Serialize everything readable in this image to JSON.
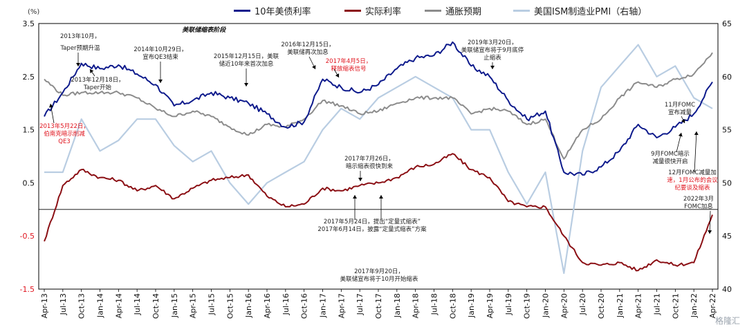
{
  "unit_label": "(%)",
  "watermark": "格隆汇",
  "legend": [
    {
      "label": "10年美债利率",
      "color": "#0d1a8c"
    },
    {
      "label": "实际利率",
      "color": "#8b0f14"
    },
    {
      "label": "通胀预期",
      "color": "#8c8c8c"
    },
    {
      "label": "美国ISM制造业PMI（右轴）",
      "color": "#b9cde2"
    }
  ],
  "shaded": {
    "label": "美联储缩表阶段",
    "from": "Oct-17",
    "to": "Aug-19"
  },
  "chart_data": {
    "type": "line",
    "title": "",
    "xlabel": "",
    "ylabel": "",
    "ylim": [
      -1.5,
      3.5
    ],
    "y2lim": [
      40,
      65
    ],
    "yticks": [
      "3.5",
      "2.5",
      "1.5",
      "0.5",
      "-0.5",
      "-1.5"
    ],
    "y2ticks": [
      "65",
      "60",
      "55",
      "50",
      "45",
      "40"
    ],
    "xticks": [
      "Apr-13",
      "Jul-13",
      "Oct-13",
      "Jan-14",
      "Apr-14",
      "Jul-14",
      "Oct-14",
      "Jan-15",
      "Apr-15",
      "Jul-15",
      "Oct-15",
      "Jan-16",
      "Apr-16",
      "Jul-16",
      "Oct-16",
      "Jan-17",
      "Apr-17",
      "Jul-17",
      "Oct-17",
      "Jan-18",
      "Apr-18",
      "Jul-18",
      "Oct-18",
      "Jan-19",
      "Apr-19",
      "Jul-19",
      "Oct-19",
      "Jan-20",
      "Apr-20",
      "Jul-20",
      "Oct-20",
      "Jan-21",
      "Apr-21",
      "Jul-21",
      "Oct-21",
      "Jan-22",
      "Apr-22"
    ],
    "series": [
      {
        "name": "10年美债利率",
        "color": "#0d1a8c",
        "axis": "left",
        "x": [
          0,
          1,
          2,
          3,
          4,
          5,
          6,
          7,
          8,
          9,
          10,
          11,
          12,
          13,
          14,
          15,
          16,
          17,
          18,
          19,
          20,
          21,
          22,
          23,
          24,
          25,
          26,
          27,
          28,
          29,
          30,
          31,
          32,
          33,
          34,
          35,
          36
        ],
        "values": [
          1.75,
          2.2,
          2.75,
          2.65,
          2.72,
          2.55,
          2.35,
          1.95,
          2.05,
          2.2,
          2.1,
          2.0,
          1.8,
          1.55,
          1.65,
          2.45,
          2.3,
          2.2,
          2.35,
          2.65,
          2.85,
          2.9,
          3.15,
          2.7,
          2.5,
          2.05,
          1.7,
          1.85,
          0.7,
          0.65,
          0.8,
          1.1,
          1.6,
          1.35,
          1.55,
          1.8,
          2.4
        ]
      },
      {
        "name": "实际利率",
        "color": "#8b0f14",
        "axis": "left",
        "x": [
          0,
          1,
          2,
          3,
          4,
          5,
          6,
          7,
          8,
          9,
          10,
          11,
          12,
          13,
          14,
          15,
          16,
          17,
          18,
          19,
          20,
          21,
          22,
          23,
          24,
          25,
          26,
          27,
          28,
          29,
          30,
          31,
          32,
          33,
          34,
          35,
          36
        ],
        "values": [
          -0.6,
          0.45,
          0.75,
          0.6,
          0.55,
          0.35,
          0.45,
          0.2,
          0.4,
          0.55,
          0.6,
          0.65,
          0.25,
          0.05,
          0.1,
          0.4,
          0.35,
          0.45,
          0.5,
          0.6,
          0.8,
          0.85,
          1.05,
          0.75,
          0.6,
          0.15,
          0.05,
          0.05,
          -0.5,
          -1.0,
          -1.05,
          -1.0,
          -1.15,
          -0.95,
          -1.05,
          -1.0,
          -0.1
        ]
      },
      {
        "name": "通胀预期",
        "color": "#8c8c8c",
        "axis": "left",
        "x": [
          0,
          1,
          2,
          3,
          4,
          5,
          6,
          7,
          8,
          9,
          10,
          11,
          12,
          13,
          14,
          15,
          16,
          17,
          18,
          19,
          20,
          21,
          22,
          23,
          24,
          25,
          26,
          27,
          28,
          29,
          30,
          31,
          32,
          33,
          34,
          35,
          36
        ],
        "values": [
          2.45,
          2.15,
          2.2,
          2.2,
          2.2,
          2.1,
          1.9,
          1.75,
          1.85,
          1.75,
          1.55,
          1.4,
          1.6,
          1.55,
          1.7,
          2.05,
          1.95,
          1.8,
          1.85,
          2.0,
          2.1,
          2.1,
          2.1,
          1.8,
          1.9,
          1.85,
          1.6,
          1.7,
          0.95,
          1.5,
          1.7,
          2.1,
          2.4,
          2.3,
          2.45,
          2.55,
          2.95
        ]
      },
      {
        "name": "美国ISM制造业PMI（右轴）",
        "color": "#b9cde2",
        "axis": "right",
        "x": [
          0,
          1,
          2,
          3,
          4,
          5,
          6,
          7,
          8,
          9,
          10,
          11,
          12,
          13,
          14,
          15,
          16,
          17,
          18,
          19,
          20,
          21,
          22,
          23,
          24,
          25,
          26,
          27,
          28,
          29,
          30,
          31,
          32,
          33,
          34,
          35,
          36
        ],
        "values": [
          51,
          51,
          56,
          53,
          54,
          56,
          56,
          53.5,
          52,
          53,
          50,
          48,
          50,
          51,
          52,
          55,
          57,
          56,
          58,
          59,
          60,
          59,
          58,
          55,
          55,
          51,
          48,
          51,
          41.5,
          53,
          59,
          61,
          63,
          60,
          61,
          58,
          57
        ]
      }
    ]
  },
  "annotations": [
    {
      "text": "2013年10月，",
      "color": "#222222"
    },
    {
      "text": "Taper预期升温",
      "color": "#222222"
    },
    {
      "text": "2013年12月18日，",
      "color": "#222222"
    },
    {
      "text": "Taper开始",
      "color": "#222222"
    },
    {
      "text": "2014年10月29日，",
      "color": "#222222"
    },
    {
      "text": "宣布QE3结束",
      "color": "#222222"
    },
    {
      "text": "2015年12月15日，美联",
      "color": "#222222"
    },
    {
      "text": "储近10年来首次加息",
      "color": "#222222"
    },
    {
      "text": "2016年12月15日，",
      "color": "#222222"
    },
    {
      "text": "美联储再次加息",
      "color": "#222222"
    },
    {
      "text": "2017年4月5日，",
      "color": "#e0141e"
    },
    {
      "text": "释放缩表信号",
      "color": "#e0141e"
    },
    {
      "text": "2019年3月20日，",
      "color": "#222222"
    },
    {
      "text": "美联储宣布将于9月底停",
      "color": "#222222"
    },
    {
      "text": "止缩表",
      "color": "#222222"
    },
    {
      "text": "2013年5月22日，",
      "color": "#e0141e"
    },
    {
      "text": "伯南克暗示削减",
      "color": "#e0141e"
    },
    {
      "text": "QE3",
      "color": "#e0141e"
    },
    {
      "text": "2017年7月26日，",
      "color": "#222222"
    },
    {
      "text": "暗示缩表很快到来",
      "color": "#222222"
    },
    {
      "text": "2017年5月24日，提出“定量式缩表”",
      "color": "#222222"
    },
    {
      "text": "2017年6月14日，披露“定量式缩表”方案",
      "color": "#222222"
    },
    {
      "text": "2017年9月20日，",
      "color": "#222222"
    },
    {
      "text": "美联储宣布将于10月开始缩表",
      "color": "#222222"
    },
    {
      "text": "11月FOMC",
      "color": "#222222"
    },
    {
      "text": "宣布减量",
      "color": "#222222"
    },
    {
      "text": "9月FOMC暗示",
      "color": "#222222"
    },
    {
      "text": "减量很快开启",
      "color": "#222222"
    },
    {
      "text": "12月FOMC减量加",
      "color": "#222222"
    },
    {
      "text": "速，1月公布的会议",
      "color": "#e0141e"
    },
    {
      "text": "纪要谈及缩表",
      "color": "#e0141e"
    },
    {
      "text": "2022年3月",
      "color": "#222222"
    },
    {
      "text": "FOMC加息",
      "color": "#222222"
    }
  ]
}
